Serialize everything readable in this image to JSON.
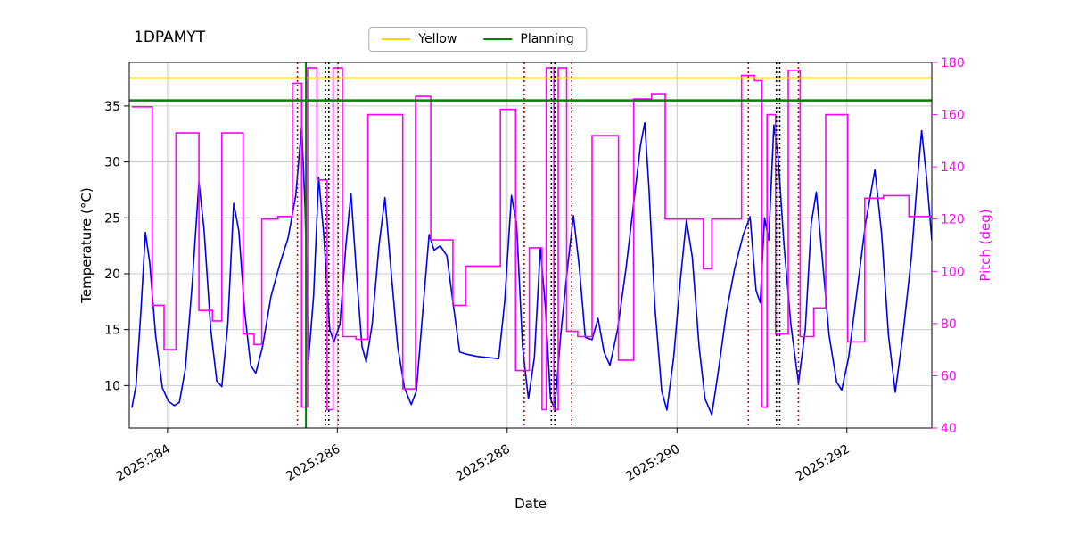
{
  "chart_data": {
    "type": "line",
    "title": "1DPAMYT",
    "xlabel": "Date",
    "ylabel_left": "Temperature (°C)",
    "ylabel_right": "Pitch (deg)",
    "xlim": [
      283.55,
      293.0
    ],
    "ylim_left": [
      6.2,
      38.9
    ],
    "ylim_right": [
      40,
      180
    ],
    "xticks": [
      {
        "value": 284,
        "label": "2025:284"
      },
      {
        "value": 286,
        "label": "2025:286"
      },
      {
        "value": 288,
        "label": "2025:288"
      },
      {
        "value": 290,
        "label": "2025:290"
      },
      {
        "value": 292,
        "label": "2025:292"
      }
    ],
    "yticks_left": [
      10,
      15,
      20,
      25,
      30,
      35
    ],
    "yticks_right": [
      40,
      60,
      80,
      100,
      120,
      140,
      160,
      180
    ],
    "grid": true,
    "colors": {
      "grid": "#c9c9c9",
      "frame": "#000000",
      "right_axis": "#FF00FF",
      "temperature": "#0000EE",
      "pitch": "#FF00FF",
      "yellow_limit": "#FFD700",
      "planning_limit": "#008000",
      "event_red": "#cc0000",
      "event_black": "#000000"
    },
    "legend": {
      "position": "top-center",
      "entries": [
        {
          "label": "Yellow",
          "color": "#FFD700"
        },
        {
          "label": "Planning",
          "color": "#008000"
        }
      ]
    },
    "hlines": [
      {
        "y": 37.5,
        "axis": "left",
        "color": "#FFD700",
        "style": "solid",
        "width": 2
      },
      {
        "y": 35.5,
        "axis": "left",
        "color": "#008000",
        "style": "solid",
        "width": 2.5
      }
    ],
    "vlines": [
      {
        "x": 285.53,
        "color": "#cc0000",
        "style": "dotted"
      },
      {
        "x": 285.63,
        "color": "#008000",
        "style": "solid"
      },
      {
        "x": 285.86,
        "color": "#000000",
        "style": "dotted"
      },
      {
        "x": 285.9,
        "color": "#000000",
        "style": "dotted"
      },
      {
        "x": 286.01,
        "color": "#cc0000",
        "style": "dotted"
      },
      {
        "x": 288.2,
        "color": "#cc0000",
        "style": "dotted"
      },
      {
        "x": 288.52,
        "color": "#000000",
        "style": "dotted"
      },
      {
        "x": 288.56,
        "color": "#000000",
        "style": "dotted"
      },
      {
        "x": 288.76,
        "color": "#cc0000",
        "style": "dotted"
      },
      {
        "x": 290.84,
        "color": "#cc0000",
        "style": "dotted"
      },
      {
        "x": 291.17,
        "color": "#000000",
        "style": "dotted"
      },
      {
        "x": 291.21,
        "color": "#000000",
        "style": "dotted"
      },
      {
        "x": 291.43,
        "color": "#cc0000",
        "style": "dotted"
      }
    ],
    "series": [
      {
        "name": "Temperature",
        "axis": "left",
        "type": "line",
        "color": "#0000EE",
        "points": [
          [
            283.58,
            8.0
          ],
          [
            283.63,
            10.0
          ],
          [
            283.69,
            17.0
          ],
          [
            283.74,
            23.7
          ],
          [
            283.79,
            21.0
          ],
          [
            283.86,
            14.5
          ],
          [
            283.94,
            9.8
          ],
          [
            284.01,
            8.6
          ],
          [
            284.08,
            8.2
          ],
          [
            284.14,
            8.5
          ],
          [
            284.21,
            11.5
          ],
          [
            284.29,
            19.0
          ],
          [
            284.37,
            28.2
          ],
          [
            284.43,
            24.0
          ],
          [
            284.51,
            15.0
          ],
          [
            284.58,
            10.4
          ],
          [
            284.64,
            9.9
          ],
          [
            284.71,
            15.5
          ],
          [
            284.78,
            26.3
          ],
          [
            284.84,
            23.8
          ],
          [
            284.91,
            16.5
          ],
          [
            284.98,
            11.8
          ],
          [
            285.04,
            11.1
          ],
          [
            285.12,
            13.5
          ],
          [
            285.22,
            18.0
          ],
          [
            285.32,
            20.8
          ],
          [
            285.42,
            23.2
          ],
          [
            285.51,
            27.0
          ],
          [
            285.58,
            33.2
          ],
          [
            285.62,
            26.0
          ],
          [
            285.66,
            12.3
          ],
          [
            285.72,
            18.0
          ],
          [
            285.78,
            28.6
          ],
          [
            285.84,
            23.5
          ],
          [
            285.91,
            15.0
          ],
          [
            285.96,
            13.9
          ],
          [
            286.03,
            15.5
          ],
          [
            286.1,
            22.5
          ],
          [
            286.16,
            27.2
          ],
          [
            286.23,
            19.5
          ],
          [
            286.29,
            13.5
          ],
          [
            286.34,
            12.1
          ],
          [
            286.41,
            15.5
          ],
          [
            286.49,
            22.5
          ],
          [
            286.56,
            26.8
          ],
          [
            286.63,
            20.5
          ],
          [
            286.71,
            13.5
          ],
          [
            286.79,
            9.8
          ],
          [
            286.87,
            8.3
          ],
          [
            286.93,
            9.5
          ],
          [
            287.01,
            17.0
          ],
          [
            287.08,
            23.5
          ],
          [
            287.14,
            22.1
          ],
          [
            287.21,
            22.5
          ],
          [
            287.29,
            21.6
          ],
          [
            287.36,
            17.5
          ],
          [
            287.44,
            13.0
          ],
          [
            287.52,
            12.8
          ],
          [
            287.65,
            12.6
          ],
          [
            287.78,
            12.5
          ],
          [
            287.9,
            12.4
          ],
          [
            287.97,
            17.5
          ],
          [
            288.05,
            27.0
          ],
          [
            288.11,
            24.5
          ],
          [
            288.18,
            13.5
          ],
          [
            288.25,
            8.8
          ],
          [
            288.32,
            12.5
          ],
          [
            288.39,
            22.3
          ],
          [
            288.45,
            17.0
          ],
          [
            288.51,
            8.8
          ],
          [
            288.56,
            7.9
          ],
          [
            288.63,
            14.5
          ],
          [
            288.71,
            20.5
          ],
          [
            288.78,
            25.2
          ],
          [
            288.85,
            20.5
          ],
          [
            288.92,
            14.3
          ],
          [
            289.0,
            14.1
          ],
          [
            289.07,
            16.0
          ],
          [
            289.14,
            13.0
          ],
          [
            289.21,
            11.8
          ],
          [
            289.3,
            15.0
          ],
          [
            289.4,
            20.5
          ],
          [
            289.5,
            27.0
          ],
          [
            289.57,
            31.5
          ],
          [
            289.62,
            33.5
          ],
          [
            289.67,
            27.5
          ],
          [
            289.74,
            17.0
          ],
          [
            289.82,
            9.5
          ],
          [
            289.88,
            7.8
          ],
          [
            289.96,
            12.5
          ],
          [
            290.04,
            19.5
          ],
          [
            290.11,
            24.8
          ],
          [
            290.18,
            21.5
          ],
          [
            290.26,
            13.5
          ],
          [
            290.33,
            8.8
          ],
          [
            290.41,
            7.4
          ],
          [
            290.49,
            11.5
          ],
          [
            290.58,
            16.5
          ],
          [
            290.68,
            20.5
          ],
          [
            290.78,
            23.5
          ],
          [
            290.86,
            25.1
          ],
          [
            290.93,
            18.5
          ],
          [
            290.98,
            17.4
          ],
          [
            291.03,
            25.0
          ],
          [
            291.08,
            23.0
          ],
          [
            291.14,
            33.3
          ],
          [
            291.19,
            30.5
          ],
          [
            291.26,
            22.5
          ],
          [
            291.34,
            15.5
          ],
          [
            291.43,
            10.2
          ],
          [
            291.51,
            15.0
          ],
          [
            291.58,
            24.5
          ],
          [
            291.64,
            27.3
          ],
          [
            291.71,
            21.5
          ],
          [
            291.79,
            14.5
          ],
          [
            291.88,
            10.3
          ],
          [
            291.94,
            9.6
          ],
          [
            292.02,
            12.5
          ],
          [
            292.12,
            18.5
          ],
          [
            292.22,
            24.5
          ],
          [
            292.33,
            29.3
          ],
          [
            292.41,
            23.5
          ],
          [
            292.49,
            14.5
          ],
          [
            292.57,
            9.4
          ],
          [
            292.66,
            14.5
          ],
          [
            292.76,
            21.5
          ],
          [
            292.82,
            27.5
          ],
          [
            292.88,
            32.8
          ],
          [
            292.94,
            28.5
          ],
          [
            293.0,
            23.0
          ]
        ]
      },
      {
        "name": "Pitch",
        "axis": "right",
        "type": "step",
        "color": "#FF00FF",
        "points": [
          [
            283.58,
            163
          ],
          [
            283.82,
            87
          ],
          [
            283.96,
            70
          ],
          [
            284.1,
            153
          ],
          [
            284.37,
            85
          ],
          [
            284.53,
            81
          ],
          [
            284.64,
            153
          ],
          [
            284.89,
            76
          ],
          [
            285.02,
            72
          ],
          [
            285.11,
            120
          ],
          [
            285.3,
            121
          ],
          [
            285.47,
            172
          ],
          [
            285.58,
            48
          ],
          [
            285.65,
            178
          ],
          [
            285.76,
            135
          ],
          [
            285.88,
            47
          ],
          [
            285.95,
            178
          ],
          [
            286.06,
            75
          ],
          [
            286.22,
            74
          ],
          [
            286.36,
            160
          ],
          [
            286.77,
            55
          ],
          [
            286.92,
            167
          ],
          [
            287.1,
            112
          ],
          [
            287.36,
            87
          ],
          [
            287.51,
            102
          ],
          [
            287.92,
            162
          ],
          [
            288.1,
            62
          ],
          [
            288.26,
            109
          ],
          [
            288.41,
            47
          ],
          [
            288.46,
            178
          ],
          [
            288.55,
            47
          ],
          [
            288.6,
            178
          ],
          [
            288.7,
            77
          ],
          [
            288.83,
            75
          ],
          [
            289.0,
            152
          ],
          [
            289.31,
            66
          ],
          [
            289.49,
            166
          ],
          [
            289.7,
            168
          ],
          [
            289.86,
            120
          ],
          [
            290.31,
            101
          ],
          [
            290.41,
            120
          ],
          [
            290.76,
            175
          ],
          [
            290.91,
            173
          ],
          [
            291.0,
            48
          ],
          [
            291.06,
            160
          ],
          [
            291.16,
            76
          ],
          [
            291.31,
            177
          ],
          [
            291.45,
            75
          ],
          [
            291.61,
            86
          ],
          [
            291.75,
            160
          ],
          [
            292.01,
            73
          ],
          [
            292.21,
            128
          ],
          [
            292.43,
            129
          ],
          [
            292.73,
            121
          ]
        ]
      }
    ]
  }
}
